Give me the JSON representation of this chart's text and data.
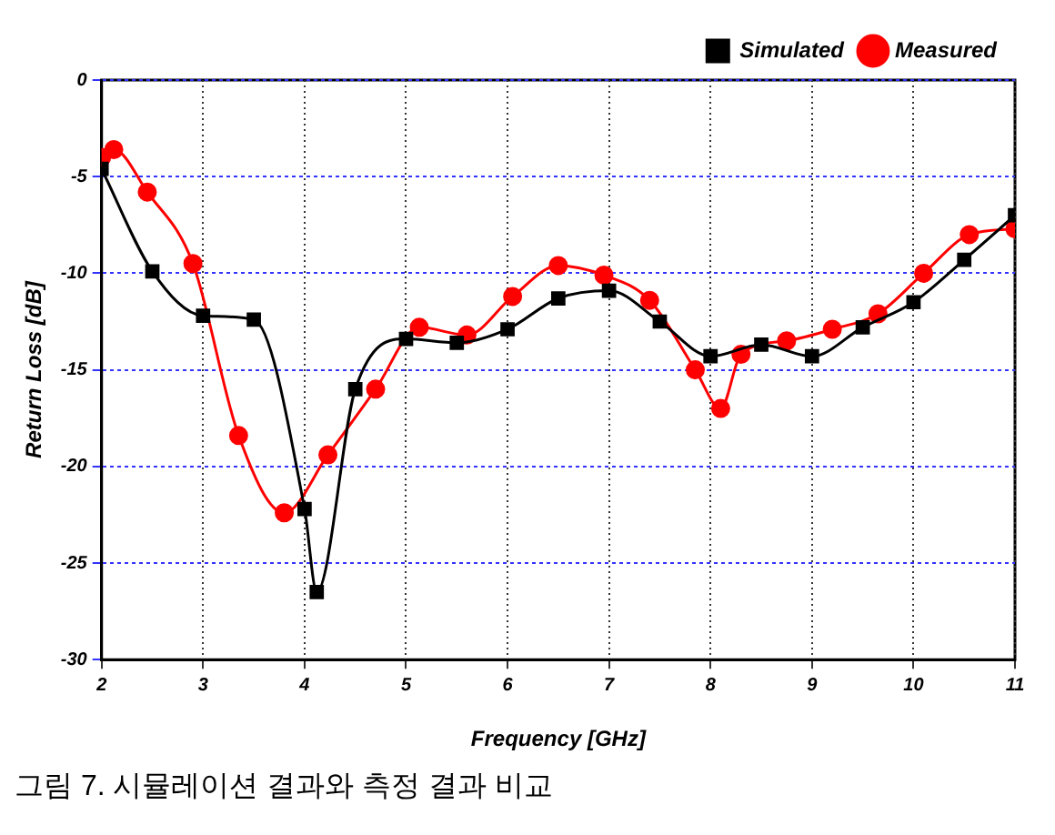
{
  "chart_data": {
    "type": "line",
    "xlabel": "Frequency [GHz]",
    "ylabel": "Return Loss [dB]",
    "series": [
      {
        "name": "Simulated",
        "color": "#000000",
        "marker": "square",
        "x": [
          2,
          2.5,
          3,
          3.5,
          4,
          4.12,
          4.5,
          5,
          5.5,
          6,
          6.5,
          7,
          7.5,
          8,
          8.5,
          9,
          9.5,
          10,
          10.5,
          11
        ],
        "values": [
          -4.6,
          -9.9,
          -12.2,
          -12.4,
          -22.2,
          -26.5,
          -16,
          -13.4,
          -13.6,
          -12.9,
          -11.3,
          -10.9,
          -12.5,
          -14.3,
          -13.7,
          -14.3,
          -12.8,
          -11.5,
          -9.3,
          -7
        ]
      },
      {
        "name": "Measured",
        "color": "#ff0000",
        "marker": "circle",
        "x": [
          2,
          2.12,
          2.45,
          2.9,
          3.35,
          3.8,
          4.23,
          4.7,
          5.13,
          5.6,
          6.05,
          6.5,
          6.95,
          7.4,
          7.85,
          8.1,
          8.3,
          8.75,
          9.2,
          9.65,
          10.1,
          10.55,
          11
        ],
        "values": [
          -4,
          -3.6,
          -5.8,
          -9.5,
          -18.4,
          -22.4,
          -19.4,
          -16,
          -12.8,
          -13.2,
          -11.2,
          -9.6,
          -10.1,
          -11.4,
          -15,
          -17,
          -14.2,
          -13.5,
          -12.9,
          -12.1,
          -10,
          -8,
          -7.7
        ]
      }
    ],
    "xlim": [
      2,
      11
    ],
    "xticks": [
      2,
      3,
      4,
      5,
      6,
      7,
      8,
      9,
      10,
      11
    ],
    "ylim": [
      -30,
      0
    ],
    "yticks": [
      -30,
      -25,
      -20,
      -15,
      -10,
      -5,
      0
    ],
    "grid": true,
    "legend": "top right",
    "annotations": [
      "그림 7. 시뮬레이션 결과와 측정 결과 비교"
    ]
  }
}
